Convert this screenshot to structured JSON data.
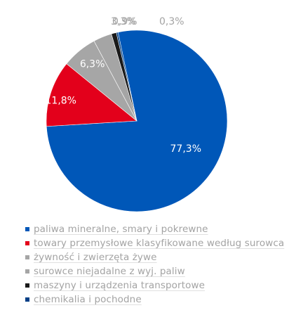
{
  "chart_data": {
    "type": "pie",
    "title": "",
    "categories": [
      "paliwa mineralne, smary i pokrewne",
      "towary przemysłowe klasyfikowane według surowca",
      "żywność i zwierzęta żywe",
      "surowce niejadalne z wyj. paliw",
      "maszyny i urządzenia transportowe",
      "chemikalia i pochodne"
    ],
    "values": [
      77.3,
      11.8,
      6.3,
      3.3,
      0.9,
      0.3
    ],
    "labels": [
      "77,3%",
      "11,8%",
      "6,3%",
      "3,3%",
      "0,9%",
      "0,3%"
    ],
    "colors": [
      "#0057b8",
      "#e3001b",
      "#a6a6a6",
      "#a5a5a5",
      "#1a1a1a",
      "#003f86"
    ],
    "label_colors": [
      "#ffffff",
      "#ffffff",
      "#ffffff",
      "#a3a3a3",
      "#a3a3a3",
      "#a3a3a3"
    ],
    "legend_position": "bottom-left"
  }
}
